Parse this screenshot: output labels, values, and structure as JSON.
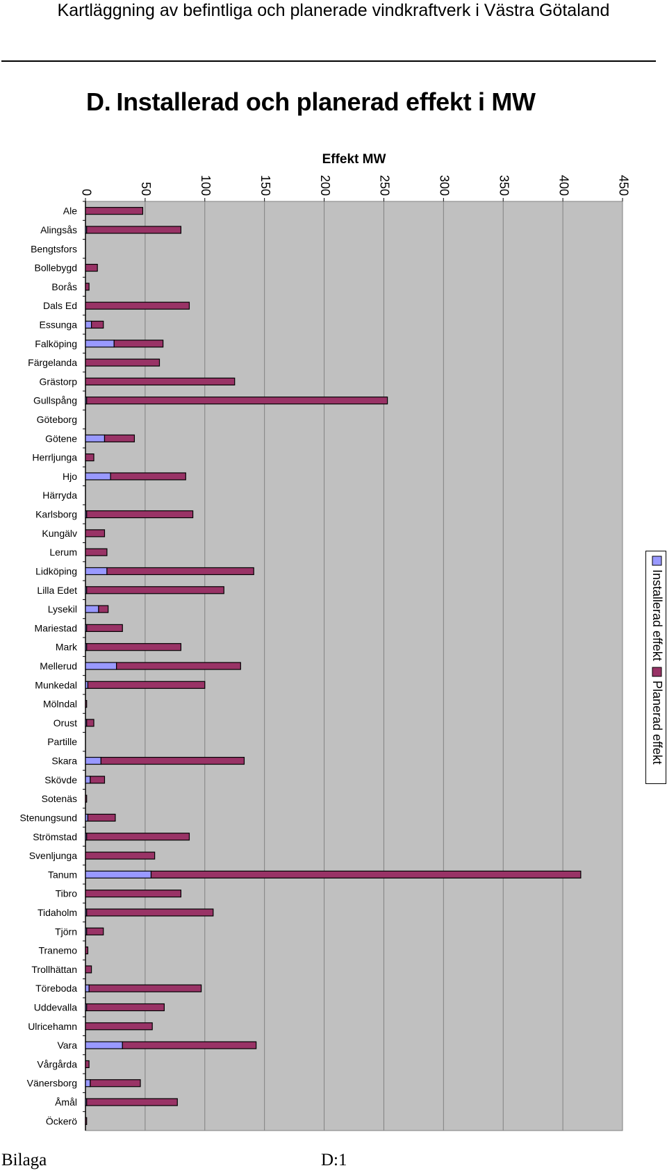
{
  "header": {
    "title": "Kartläggning av befintliga och planerade vindkraftverk i Västra Götaland"
  },
  "section": {
    "letter": "D.",
    "title": "Installerad och planerad effekt i MW"
  },
  "footer": {
    "left": "Bilaga",
    "center": "D:1"
  },
  "colors": {
    "installed": "#9999ff",
    "planned": "#993366",
    "plot_bg": "#c0c0c0",
    "grid": "#808080"
  },
  "chart_data": {
    "type": "bar",
    "orientation": "horizontal",
    "stacked": true,
    "title": "Effekt MW",
    "xlim": [
      0,
      450
    ],
    "xticks": [
      0,
      50,
      100,
      150,
      200,
      250,
      300,
      350,
      400,
      450
    ],
    "grid": true,
    "legend_position": "right",
    "categories": [
      "Ale",
      "Alingsås",
      "Bengtsfors",
      "Bollebygd",
      "Borås",
      "Dals Ed",
      "Essunga",
      "Falköping",
      "Färgelanda",
      "Grästorp",
      "Gullspång",
      "Göteborg",
      "Götene",
      "Herrljunga",
      "Hjo",
      "Härryda",
      "Karlsborg",
      "Kungälv",
      "Lerum",
      "Lidköping",
      "Lilla Edet",
      "Lysekil",
      "Mariestad",
      "Mark",
      "Mellerud",
      "Munkedal",
      "Mölndal",
      "Orust",
      "Partille",
      "Skara",
      "Skövde",
      "Sotenäs",
      "Stenungsund",
      "Strömstad",
      "Svenljunga",
      "Tanum",
      "Tibro",
      "Tidaholm",
      "Tjörn",
      "Tranemo",
      "Trollhättan",
      "Töreboda",
      "Uddevalla",
      "Ulricehamn",
      "Vara",
      "Vårgårda",
      "Vänersborg",
      "Åmål",
      "Öckerö"
    ],
    "series": [
      {
        "name": "Installerad effekt",
        "color": "#9999ff",
        "values": [
          0,
          1,
          0,
          0,
          0,
          0,
          5,
          24,
          0,
          0,
          1,
          0,
          16,
          0,
          21,
          0,
          1,
          0,
          0,
          18,
          1,
          11,
          1,
          1,
          26,
          2,
          0,
          1,
          0,
          13,
          4,
          0,
          2,
          1,
          0,
          55,
          0,
          1,
          1,
          0,
          0,
          3,
          1,
          0,
          31,
          0,
          4,
          1,
          0
        ]
      },
      {
        "name": "Planerad effekt",
        "color": "#993366",
        "values": [
          48,
          79,
          0,
          10,
          3,
          87,
          10,
          41,
          62,
          125,
          252,
          0,
          25,
          7,
          63,
          0,
          89,
          16,
          18,
          123,
          115,
          8,
          30,
          79,
          104,
          98,
          1,
          6,
          0,
          120,
          12,
          1,
          23,
          86,
          58,
          360,
          80,
          106,
          14,
          2,
          5,
          94,
          65,
          56,
          112,
          3,
          42,
          76,
          1
        ]
      }
    ]
  }
}
